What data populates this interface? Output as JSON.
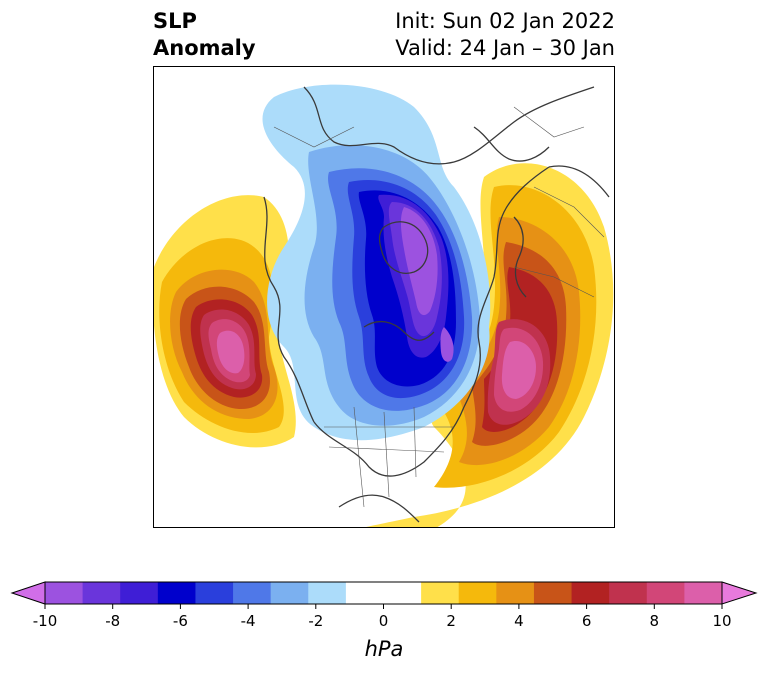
{
  "title": {
    "left_line1": "SLP",
    "left_line2": "Anomaly",
    "right_line1": "Init: Sun 02 Jan 2022",
    "right_line2": "Valid: 24 Jan – 30 Jan"
  },
  "colorbar": {
    "unit": "hPa",
    "min": -10,
    "max": 10,
    "step": 1,
    "ticks": [
      "-10",
      "-8",
      "-6",
      "-4",
      "-2",
      "0",
      "2",
      "4",
      "6",
      "8",
      "10"
    ],
    "colors": [
      "#d16ee8",
      "#9c52e0",
      "#6a35db",
      "#3f1ed6",
      "#0000cc",
      "#2a3fdc",
      "#4f78e8",
      "#7bb0f0",
      "#acdcfa",
      "#ffffff",
      "#ffffff",
      "#ffe04a",
      "#f5b90c",
      "#e69115",
      "#c85418",
      "#b22222",
      "#c0324e",
      "#d24678",
      "#dc5faa",
      "#e87adc"
    ]
  },
  "map": {
    "projection": "north-polar-stereographic",
    "region": "Northern Hemisphere"
  }
}
